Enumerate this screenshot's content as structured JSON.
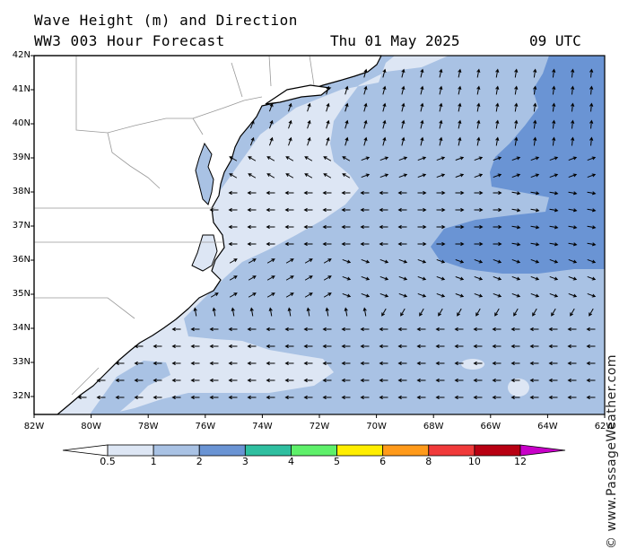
{
  "header": {
    "title_line1": "Wave Height (m) and Direction",
    "title_line2": "WW3 003 Hour Forecast",
    "date": "Thu 01 May 2025",
    "hour": "09 UTC"
  },
  "credit": "© www.PassageWeather.com",
  "axes": {
    "lat_labels": [
      "42N",
      "41N",
      "40N",
      "39N",
      "38N",
      "37N",
      "36N",
      "35N",
      "34N",
      "33N",
      "32N"
    ],
    "lon_labels": [
      "82W",
      "80W",
      "78W",
      "76W",
      "74W",
      "72W",
      "70W",
      "68W",
      "66W",
      "64W",
      "62W"
    ]
  },
  "colorbar": {
    "labels": [
      "0.5",
      "1",
      "2",
      "3",
      "4",
      "5",
      "6",
      "8",
      "10",
      "12"
    ],
    "colors": [
      "#ffffff",
      "#dde6f4",
      "#a9c2e4",
      "#6a94d4",
      "#2fbfa0",
      "#5ef06a",
      "#ffee00",
      "#ff9a1a",
      "#f03a3a",
      "#b80012",
      "#c800c8"
    ]
  },
  "colors": {
    "land": "#ffffff",
    "band_0_5_1": "#dde6f4",
    "band_1_2": "#a9c2e4",
    "band_2_3": "#6a94d4",
    "coast": "#000000",
    "borders": "#999999"
  }
}
